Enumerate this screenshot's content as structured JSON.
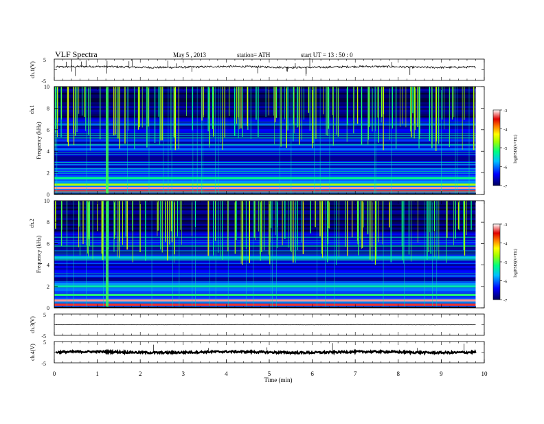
{
  "header": {
    "title": "VLF  Spectra",
    "date": "May 5  , 2013",
    "station": "station= ATH",
    "start": "start  UT  =    13 : 50 : 0"
  },
  "chart_data": [
    {
      "type": "line",
      "panel": "ch1-waveform",
      "ylabel": "ch.1(V)",
      "ylim": [
        -5,
        5
      ],
      "yticks": [
        "5",
        "-5"
      ],
      "xlim": [
        0,
        10
      ],
      "description_level": 1.3,
      "color": "#000000"
    },
    {
      "type": "heatmap",
      "panel": "ch1-spectrogram",
      "ylabel_top": "ch.1",
      "ylabel": "Frequency  (kHz)",
      "ylim": [
        0,
        10
      ],
      "yticks": [
        "0",
        "2",
        "4",
        "6",
        "8",
        "10"
      ],
      "xlim": [
        0,
        9.8
      ],
      "colorbar": {
        "label": "log(PSD)(V²/Hz)",
        "ticks": [
          "-3",
          "-4",
          "-5",
          "-6",
          "-7"
        ],
        "range": [
          -7,
          -3
        ]
      },
      "bands_khz": [
        {
          "f": 0.3,
          "level": -3.4
        },
        {
          "f": 0.6,
          "level": -3.2
        },
        {
          "f": 0.9,
          "level": -4.6
        },
        {
          "f": 1.5,
          "level": -5.2
        },
        {
          "f": 2.3,
          "level": -6.2
        },
        {
          "f": 3.0,
          "level": -6.3
        },
        {
          "f": 4.2,
          "level": -6.0
        },
        {
          "f": 5.0,
          "level": -6.2
        },
        {
          "f": 6.5,
          "level": -6.1
        }
      ],
      "burst_time_min": 1.23
    },
    {
      "type": "heatmap",
      "panel": "ch2-spectrogram",
      "ylabel_top": "ch.2",
      "ylabel": "Frequency  (kHz)",
      "ylim": [
        0,
        10
      ],
      "yticks": [
        "0",
        "2",
        "4",
        "6",
        "8",
        "10"
      ],
      "xlim": [
        0,
        9.8
      ],
      "colorbar": {
        "label": "log(PSD)(V²/Hz)",
        "ticks": [
          "-3",
          "-4",
          "-5",
          "-6",
          "-7"
        ],
        "range": [
          -7,
          -3
        ]
      },
      "bands_khz": [
        {
          "f": 0.3,
          "level": -3.4
        },
        {
          "f": 0.7,
          "level": -3.2
        },
        {
          "f": 1.2,
          "level": -5.0
        },
        {
          "f": 2.0,
          "level": -5.3
        },
        {
          "f": 3.0,
          "level": -6.2
        },
        {
          "f": 4.7,
          "level": -5.5
        },
        {
          "f": 6.0,
          "level": -6.3
        }
      ],
      "burst_time_min": 1.23
    },
    {
      "type": "line",
      "panel": "ch3-waveform",
      "ylabel": "ch.3(V)",
      "ylim": [
        -5,
        5
      ],
      "yticks": [
        "5",
        "-5"
      ],
      "xlim": [
        0,
        10
      ],
      "description_level": 0.0,
      "color": "#000000"
    },
    {
      "type": "line",
      "panel": "ch4-waveform",
      "ylabel": "ch.4(V)",
      "ylim": [
        -5,
        5
      ],
      "yticks": [
        "5",
        "-5"
      ],
      "xlim": [
        0,
        10
      ],
      "description_level": 0.0,
      "color": "#000000"
    }
  ],
  "x_axis": {
    "label": "Time  (min)",
    "ticks": [
      "0",
      "1",
      "2",
      "3",
      "4",
      "5",
      "6",
      "7",
      "8",
      "9",
      "10"
    ],
    "range": [
      0,
      10
    ]
  }
}
